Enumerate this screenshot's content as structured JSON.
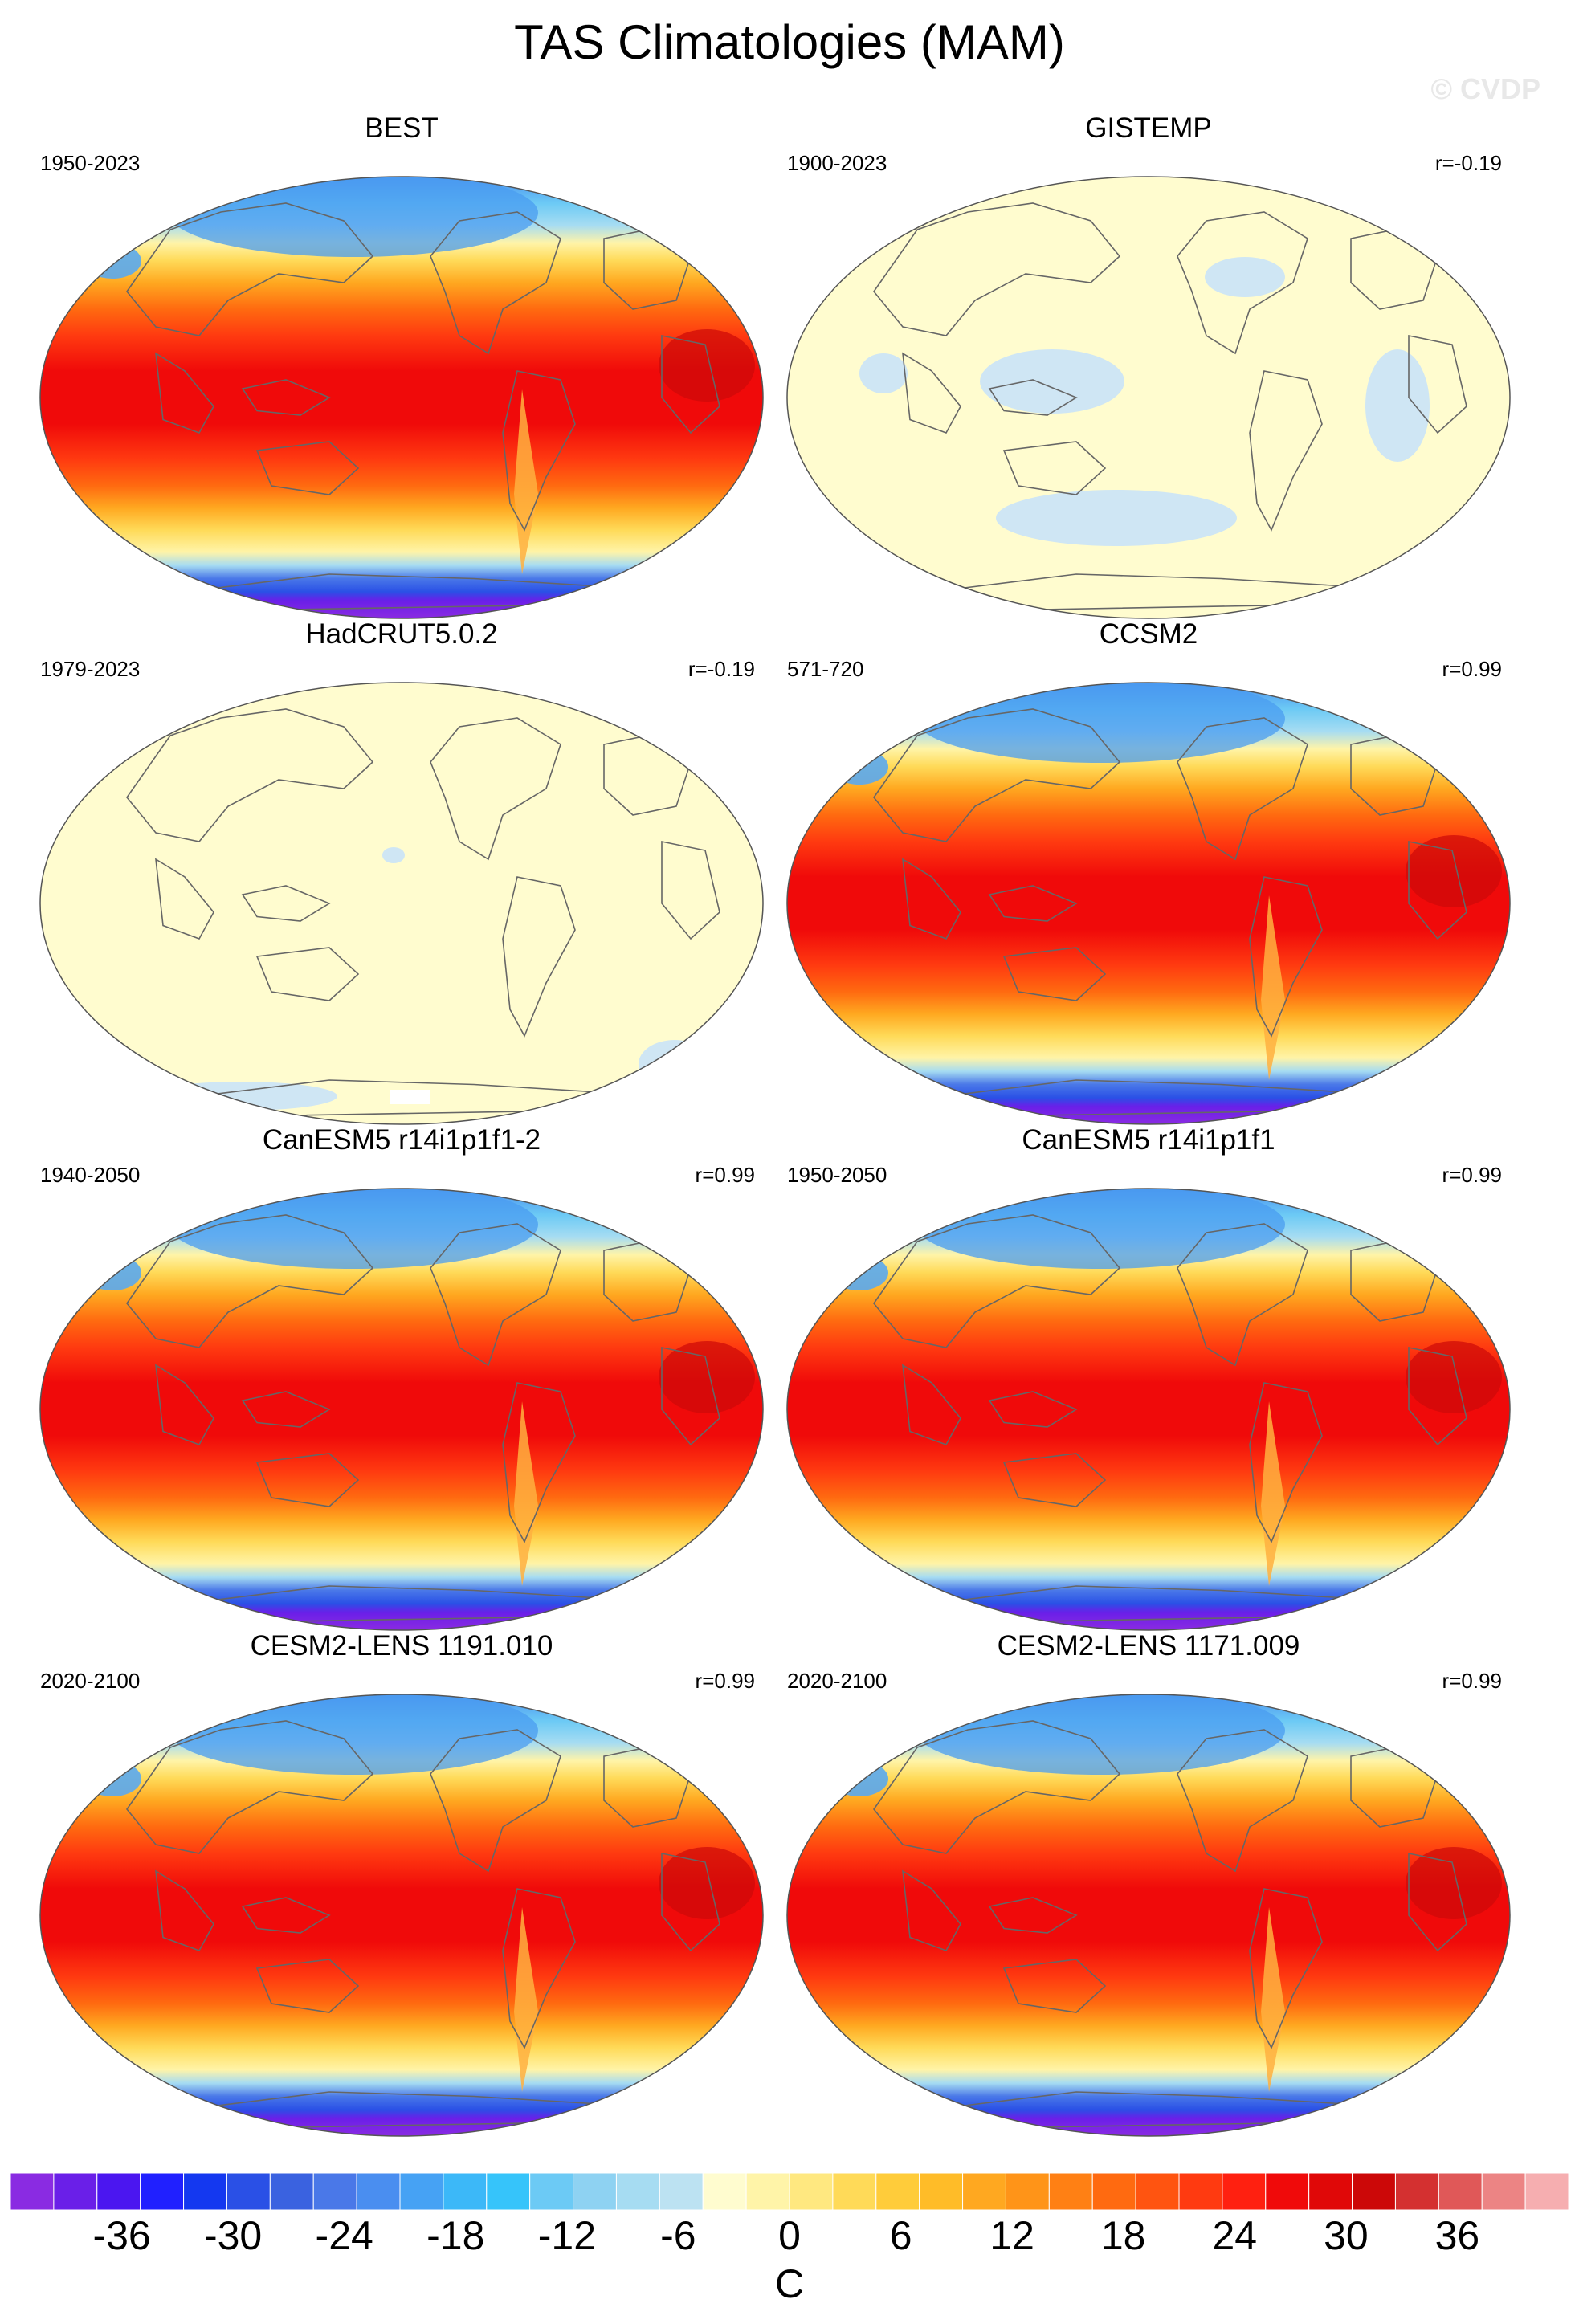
{
  "page": {
    "title": "TAS Climatologies (MAM)",
    "watermark": "© CVDP"
  },
  "panels": [
    {
      "name": "BEST",
      "period": "1950-2023",
      "corr": "",
      "style": "full"
    },
    {
      "name": "GISTEMP",
      "period": "1900-2023",
      "corr": "r=-0.19",
      "style": "anomaly"
    },
    {
      "name": "HadCRUT5.0.2",
      "period": "1979-2023",
      "corr": "r=-0.19",
      "style": "anomaly-flat"
    },
    {
      "name": "CCSM2",
      "period": "571-720",
      "corr": "r=0.99",
      "style": "full"
    },
    {
      "name": "CanESM5 r14i1p1f1-2",
      "period": "1940-2050",
      "corr": "r=0.99",
      "style": "full"
    },
    {
      "name": "CanESM5 r14i1p1f1",
      "period": "1950-2050",
      "corr": "r=0.99",
      "style": "full"
    },
    {
      "name": "CESM2-LENS 1191.010",
      "period": "2020-2100",
      "corr": "r=0.99",
      "style": "full"
    },
    {
      "name": "CESM2-LENS 1171.009",
      "period": "2020-2100",
      "corr": "r=0.99",
      "style": "full"
    }
  ],
  "colorbar": {
    "unit": "C",
    "min": -42,
    "max": 42,
    "step": 2,
    "tick_labels": [
      "-36",
      "-30",
      "-24",
      "-18",
      "-12",
      "-6",
      "0",
      "6",
      "12",
      "18",
      "24",
      "30",
      "36"
    ],
    "colors": [
      "#8a2be2",
      "#6a1fe8",
      "#4b16f0",
      "#2020ff",
      "#1438f0",
      "#2a50e6",
      "#3a62e0",
      "#4a78e8",
      "#4a8ef0",
      "#46a2f4",
      "#3cb8f8",
      "#36c4fa",
      "#6ccaf5",
      "#8ed2f2",
      "#a6dcf2",
      "#bce2f2",
      "#fffccf",
      "#fff4a8",
      "#ffe880",
      "#ffda58",
      "#ffcc3a",
      "#ffbc28",
      "#ffa820",
      "#ff9418",
      "#ff8014",
      "#ff6a10",
      "#ff5410",
      "#ff3a10",
      "#ff2010",
      "#f00a0a",
      "#e00808",
      "#cc0808",
      "#d43030",
      "#e05858",
      "#ec8484",
      "#f6aeb0"
    ]
  }
}
